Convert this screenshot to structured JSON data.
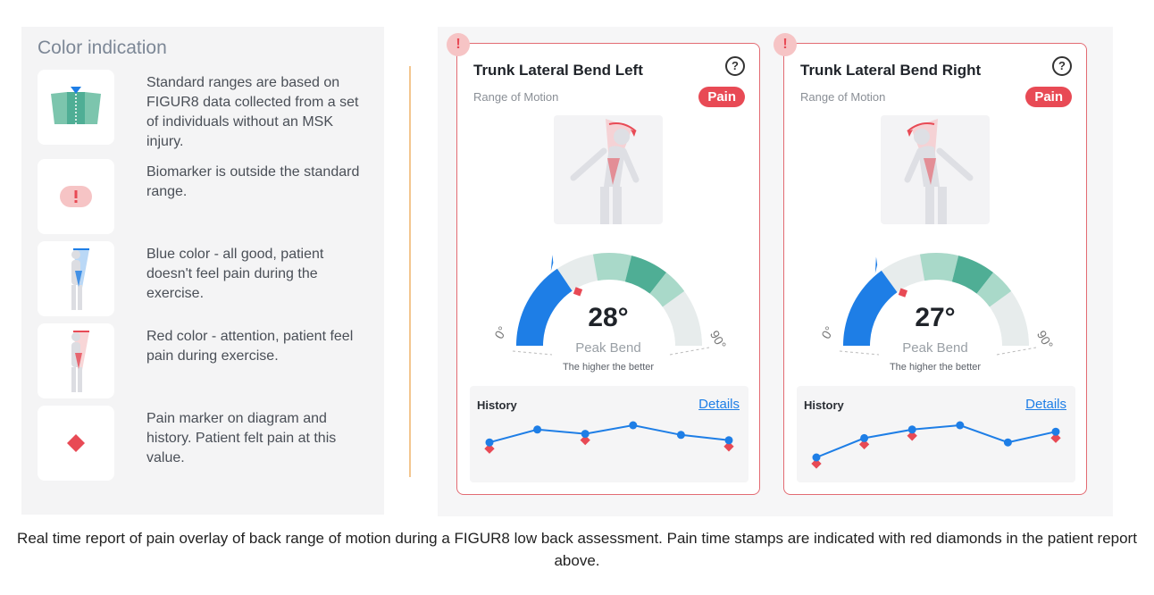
{
  "legend": {
    "title": "Color indication",
    "items": [
      {
        "icon": "standard-range-icon",
        "text": "Standard ranges are based on FIGUR8 data collected from a set of individuals without an MSK injury."
      },
      {
        "icon": "exclamation-icon",
        "text": "Biomarker is outside the standard range."
      },
      {
        "icon": "blue-figure-icon",
        "text": "Blue color - all good, patient doesn't feel pain during the exercise."
      },
      {
        "icon": "red-figure-icon",
        "text": "Red color - attention, patient feel pain during exercise."
      },
      {
        "icon": "pain-diamond-icon",
        "text": "Pain marker on diagram and history. Patient felt pain at this value."
      }
    ]
  },
  "cards": [
    {
      "title": "Trunk Lateral Bend Left",
      "subtitle": "Range of Motion",
      "badge": "Pain",
      "warning": "!",
      "help": "?",
      "value": "28°",
      "value_num": 28,
      "pain_marker": 28,
      "peak_label": "Peak Bend",
      "peak_sub": "The higher the better",
      "gauge_min": "0°",
      "gauge_max": "90°",
      "history_title": "History",
      "history_link": "Details",
      "history_points": [
        34,
        46,
        42,
        50,
        41,
        36
      ],
      "history_pain": [
        1,
        0,
        1,
        0,
        0,
        1
      ]
    },
    {
      "title": "Trunk Lateral Bend Right",
      "subtitle": "Range of Motion",
      "badge": "Pain",
      "warning": "!",
      "help": "?",
      "value": "27°",
      "value_num": 27,
      "pain_marker": 27,
      "peak_label": "Peak Bend",
      "peak_sub": "The higher the better",
      "gauge_min": "0°",
      "gauge_max": "90°",
      "history_title": "History",
      "history_link": "Details",
      "history_points": [
        20,
        38,
        46,
        50,
        34,
        44
      ],
      "history_pain": [
        1,
        1,
        1,
        0,
        0,
        1
      ]
    }
  ],
  "caption": "Real time report of pain overlay of back range of motion during a FIGUR8 low back assessment. Pain time stamps are indicated with red diamonds in the patient report above.",
  "colors": {
    "blue": "#1e7ee6",
    "red": "#e84a55",
    "teal": "#4fae95",
    "teal_light": "#a9d9c9",
    "grey_arc": "#e7ecec"
  }
}
